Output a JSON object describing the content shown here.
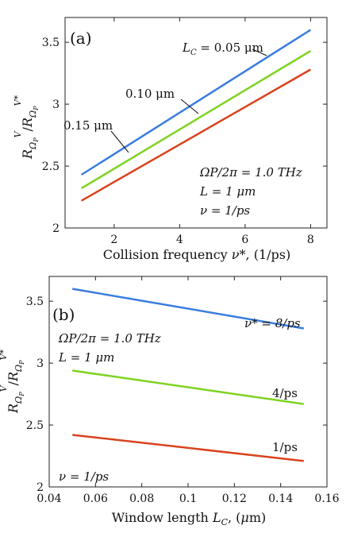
{
  "chart_data": [
    {
      "type": "line",
      "panel": "(a)",
      "xlabel": "Collision frequency ν*, (1/ps)",
      "ylabel": "R^V_ΩP / R^V*_ΩP",
      "xlim": [
        0.5,
        8.5
      ],
      "ylim": [
        2,
        3.7
      ],
      "xticks": [
        2,
        4,
        6,
        8
      ],
      "yticks": [
        2,
        2.5,
        3,
        3.5
      ],
      "ytick_labels": [
        "2",
        "2.5",
        "3",
        "3.5"
      ],
      "series": [
        {
          "name": "L_C = 0.05 μm",
          "color": "#3a7de0",
          "x": [
            1,
            8
          ],
          "y": [
            2.43,
            3.6
          ]
        },
        {
          "name": "0.10 μm",
          "color": "#7ed321",
          "x": [
            1,
            8
          ],
          "y": [
            2.32,
            3.43
          ]
        },
        {
          "name": "0.15 μm",
          "color": "#d9431e",
          "x": [
            1,
            8
          ],
          "y": [
            2.22,
            3.28
          ]
        }
      ],
      "annotations": {
        "lc_prefix": "L",
        "lc_sub": "C",
        "lc_value": " = 0.05 μm",
        "label_010": "0.10 μm",
        "label_015": "0.15 μm",
        "params": [
          "ΩP/2π = 1.0 THz",
          "L = 1 μm",
          "ν = 1/ps"
        ]
      }
    },
    {
      "type": "line",
      "panel": "(b)",
      "xlabel": "Window length L_C, (μm)",
      "ylabel": "R^V_ΩP / R^V*_ΩP",
      "xlim": [
        0.04,
        0.16
      ],
      "ylim": [
        2,
        3.7
      ],
      "xticks": [
        0.04,
        0.06,
        0.08,
        0.1,
        0.12,
        0.14,
        0.16
      ],
      "xtick_labels": [
        "0.04",
        "0.06",
        "0.08",
        "0.1",
        "0.12",
        "0.14",
        "0.16"
      ],
      "yticks": [
        2,
        2.5,
        3,
        3.5
      ],
      "ytick_labels": [
        "2",
        "2.5",
        "3",
        "3.5"
      ],
      "series": [
        {
          "name": "ν* = 8/ps",
          "color": "#3a7de0",
          "x": [
            0.05,
            0.15
          ],
          "y": [
            3.6,
            3.28
          ]
        },
        {
          "name": "4/ps",
          "color": "#7ed321",
          "x": [
            0.05,
            0.15
          ],
          "y": [
            2.94,
            2.67
          ]
        },
        {
          "name": "1/ps",
          "color": "#d9431e",
          "x": [
            0.05,
            0.15
          ],
          "y": [
            2.42,
            2.21
          ]
        }
      ],
      "annotations": {
        "label_8": "ν* = 8/ps",
        "label_4": "4/ps",
        "label_1": "1/ps",
        "params": [
          "ΩP/2π = 1.0 THz",
          "L = 1 μm"
        ],
        "nu": "ν = 1/ps"
      }
    }
  ]
}
